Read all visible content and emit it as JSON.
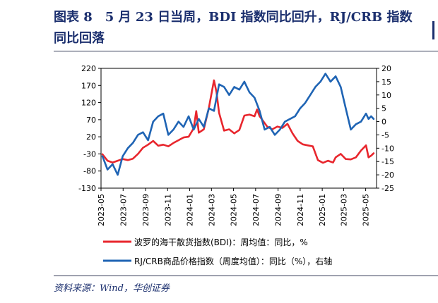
{
  "header": {
    "title": "图表 8　5 月 23 日当周，BDI 指数同比回升，RJ/CRB 指数同比回落"
  },
  "source": "资料来源：Wind，华创证券",
  "colors": {
    "bdi": "#e8262d",
    "crb": "#1f64b4",
    "axis": "#000000",
    "title": "#1b2f6e"
  },
  "chart_data": {
    "type": "line",
    "title": "图表 8　5 月 23 日当周，BDI 指数同比回升，RJ/CRB 指数同比回落",
    "x_tick_labels": [
      "2023-05",
      "2023-07",
      "2023-09",
      "2023-11",
      "2024-01",
      "2024-03",
      "2024-05",
      "2024-07",
      "2024-09",
      "2024-11",
      "2025-01",
      "2025-03",
      "2025-05"
    ],
    "xlim": [
      "2023-05-01",
      "2025-05-31"
    ],
    "y_left": {
      "ticks": [
        220,
        170,
        120,
        70,
        20,
        -30,
        -80,
        -130
      ],
      "ylim": [
        -130,
        220
      ],
      "unit": "%"
    },
    "y_right": {
      "ticks": [
        20,
        15,
        10,
        5,
        0,
        -5,
        -10,
        -15,
        -20,
        -25
      ],
      "ylim": [
        -25,
        20
      ],
      "unit": "%"
    },
    "legend": {
      "placement": "bottom"
    },
    "series": [
      {
        "name": "波罗的海干散货指数(BDI)：周均值：同比，%",
        "axis": "left",
        "color": "#e8262d",
        "points": [
          [
            "2023-05-05",
            -31
          ],
          [
            "2023-05-19",
            -50
          ],
          [
            "2023-06-02",
            -55
          ],
          [
            "2023-06-16",
            -50
          ],
          [
            "2023-06-30",
            -45
          ],
          [
            "2023-07-14",
            -48
          ],
          [
            "2023-07-28",
            -44
          ],
          [
            "2023-08-11",
            -30
          ],
          [
            "2023-08-25",
            -12
          ],
          [
            "2023-09-08",
            -3
          ],
          [
            "2023-09-22",
            8
          ],
          [
            "2023-10-06",
            -6
          ],
          [
            "2023-10-20",
            -3
          ],
          [
            "2023-11-03",
            -8
          ],
          [
            "2023-11-17",
            2
          ],
          [
            "2023-12-01",
            10
          ],
          [
            "2023-12-15",
            18
          ],
          [
            "2023-12-29",
            20
          ],
          [
            "2024-01-12",
            45
          ],
          [
            "2024-01-19",
            95
          ],
          [
            "2024-01-26",
            32
          ],
          [
            "2024-02-09",
            42
          ],
          [
            "2024-02-23",
            105
          ],
          [
            "2024-03-01",
            145
          ],
          [
            "2024-03-08",
            185
          ],
          [
            "2024-03-15",
            150
          ],
          [
            "2024-03-22",
            90
          ],
          [
            "2024-04-05",
            38
          ],
          [
            "2024-04-19",
            42
          ],
          [
            "2024-05-03",
            30
          ],
          [
            "2024-05-17",
            40
          ],
          [
            "2024-05-31",
            82
          ],
          [
            "2024-06-14",
            85
          ],
          [
            "2024-06-28",
            80
          ],
          [
            "2024-07-05",
            100
          ],
          [
            "2024-07-12",
            80
          ],
          [
            "2024-07-19",
            70
          ],
          [
            "2024-08-02",
            50
          ],
          [
            "2024-08-16",
            42
          ],
          [
            "2024-08-30",
            50
          ],
          [
            "2024-09-13",
            46
          ],
          [
            "2024-09-27",
            58
          ],
          [
            "2024-10-11",
            30
          ],
          [
            "2024-10-25",
            8
          ],
          [
            "2024-11-08",
            -2
          ],
          [
            "2024-11-22",
            -5
          ],
          [
            "2024-12-06",
            -8
          ],
          [
            "2024-12-20",
            -48
          ],
          [
            "2025-01-03",
            -56
          ],
          [
            "2025-01-17",
            -50
          ],
          [
            "2025-01-31",
            -55
          ],
          [
            "2025-02-07",
            -40
          ],
          [
            "2025-02-21",
            -30
          ],
          [
            "2025-03-07",
            -45
          ],
          [
            "2025-03-21",
            -46
          ],
          [
            "2025-04-04",
            -40
          ],
          [
            "2025-04-18",
            -20
          ],
          [
            "2025-05-02",
            -5
          ],
          [
            "2025-05-09",
            -40
          ],
          [
            "2025-05-16",
            -35
          ],
          [
            "2025-05-23",
            -28
          ]
        ]
      },
      {
        "name": "RJ/CRB商品价格指数（周度均值）：同比（%），右轴",
        "axis": "right",
        "color": "#1f64b4",
        "points": [
          [
            "2023-05-05",
            -13
          ],
          [
            "2023-05-19",
            -18
          ],
          [
            "2023-06-02",
            -16
          ],
          [
            "2023-06-16",
            -20
          ],
          [
            "2023-06-30",
            -13
          ],
          [
            "2023-07-14",
            -10
          ],
          [
            "2023-07-28",
            -8
          ],
          [
            "2023-08-11",
            -5
          ],
          [
            "2023-08-25",
            -4
          ],
          [
            "2023-09-08",
            -7
          ],
          [
            "2023-09-22",
            0
          ],
          [
            "2023-10-06",
            2
          ],
          [
            "2023-10-20",
            3
          ],
          [
            "2023-11-03",
            -5
          ],
          [
            "2023-11-17",
            -3
          ],
          [
            "2023-12-01",
            0
          ],
          [
            "2023-12-15",
            -2
          ],
          [
            "2023-12-29",
            2
          ],
          [
            "2024-01-12",
            -3
          ],
          [
            "2024-01-26",
            1
          ],
          [
            "2024-02-09",
            -2
          ],
          [
            "2024-02-23",
            5
          ],
          [
            "2024-03-08",
            4
          ],
          [
            "2024-03-22",
            14
          ],
          [
            "2024-04-05",
            13
          ],
          [
            "2024-04-19",
            10
          ],
          [
            "2024-05-03",
            13
          ],
          [
            "2024-05-17",
            12
          ],
          [
            "2024-05-31",
            15
          ],
          [
            "2024-06-14",
            11
          ],
          [
            "2024-06-28",
            9
          ],
          [
            "2024-07-12",
            4
          ],
          [
            "2024-07-26",
            -3
          ],
          [
            "2024-08-09",
            -2
          ],
          [
            "2024-08-23",
            -5
          ],
          [
            "2024-09-06",
            -3
          ],
          [
            "2024-09-20",
            0
          ],
          [
            "2024-10-04",
            1
          ],
          [
            "2024-10-18",
            2
          ],
          [
            "2024-11-01",
            5
          ],
          [
            "2024-11-15",
            7
          ],
          [
            "2024-11-29",
            10
          ],
          [
            "2024-12-13",
            13
          ],
          [
            "2024-12-27",
            15
          ],
          [
            "2025-01-10",
            18
          ],
          [
            "2025-01-24",
            15
          ],
          [
            "2025-02-07",
            17
          ],
          [
            "2025-02-21",
            13
          ],
          [
            "2025-03-07",
            5
          ],
          [
            "2025-03-21",
            -3
          ],
          [
            "2025-04-04",
            -1
          ],
          [
            "2025-04-18",
            0
          ],
          [
            "2025-05-02",
            3
          ],
          [
            "2025-05-09",
            1
          ],
          [
            "2025-05-16",
            2
          ],
          [
            "2025-05-23",
            1
          ]
        ]
      }
    ]
  }
}
